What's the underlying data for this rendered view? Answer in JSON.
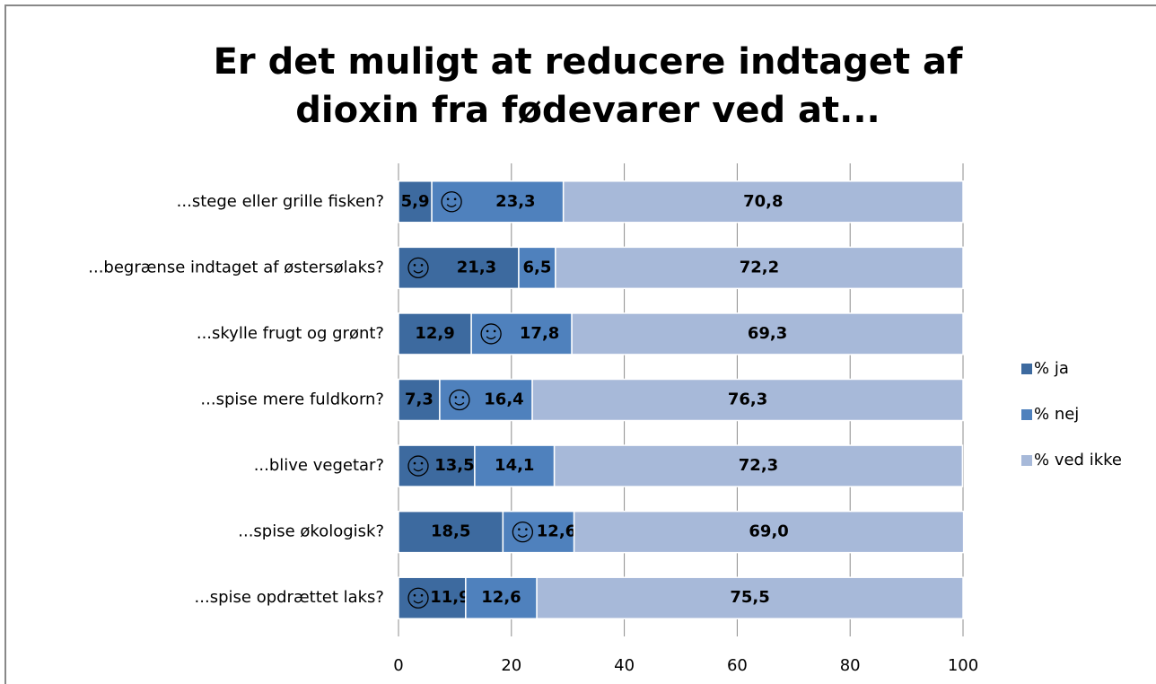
{
  "chart_data": {
    "type": "stacked_bar_horizontal",
    "title": "Er det muligt at reducere indtaget af dioxin fra fødevarer ved at...",
    "categories": [
      "...stege eller grille fisken?",
      "...begrænse indtaget af østersølaks?",
      "...skylle frugt og grønt?",
      "...spise mere fuldkorn?",
      "...blive vegetar?",
      "...spise økologisk?",
      "...spise opdrættet laks?"
    ],
    "series": [
      {
        "name": "% ja",
        "color": "#3d6a9f",
        "values": [
          5.9,
          21.3,
          12.9,
          7.3,
          13.5,
          18.5,
          11.9
        ],
        "value_labels": [
          "5,9",
          "21,3",
          "12,9",
          "7,3",
          "13,5",
          "18,5",
          "11,9"
        ]
      },
      {
        "name": "% nej",
        "color": "#4f81bd",
        "values": [
          23.3,
          6.5,
          17.8,
          16.4,
          14.1,
          12.6,
          12.6
        ],
        "value_labels": [
          "23,3",
          "6,5",
          "17,8",
          "16,4",
          "14,1",
          "12,6",
          "12,6"
        ]
      },
      {
        "name": "% ved ikke",
        "color": "#a7b9d9",
        "values": [
          70.8,
          72.2,
          69.3,
          76.3,
          72.3,
          69.0,
          75.5
        ],
        "value_labels": [
          "70,8",
          "72,2",
          "69,3",
          "76,3",
          "72,3",
          "69,0",
          "75,5"
        ]
      }
    ],
    "smiley_series": [
      1,
      0,
      1,
      1,
      0,
      1,
      0
    ],
    "xlim": [
      0,
      100
    ],
    "xticks": [
      0,
      20,
      40,
      60,
      80,
      100
    ],
    "grid": true,
    "legend": "right"
  }
}
